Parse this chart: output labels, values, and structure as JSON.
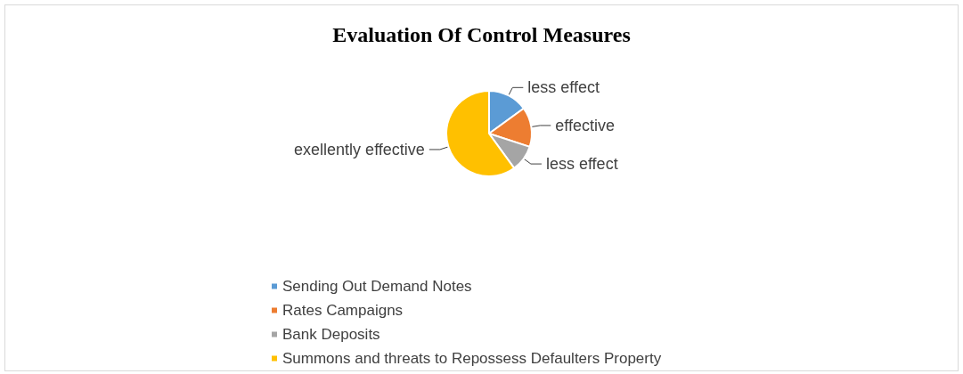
{
  "chart_data": {
    "type": "pie",
    "title": "Evaluation Of Control Measures",
    "categories": [
      "Sending Out Demand Notes",
      "Rates Campaigns",
      "Bank Deposits",
      "Summons and threats to Repossess Defaulters Property"
    ],
    "values": [
      15,
      15,
      10,
      60
    ],
    "colors": [
      "#5b9bd5",
      "#ed7d31",
      "#a5a5a5",
      "#ffc000"
    ],
    "value_labels": [
      "less effect",
      "effective",
      "less effect",
      "exellently effective"
    ],
    "legend": "bottom"
  }
}
